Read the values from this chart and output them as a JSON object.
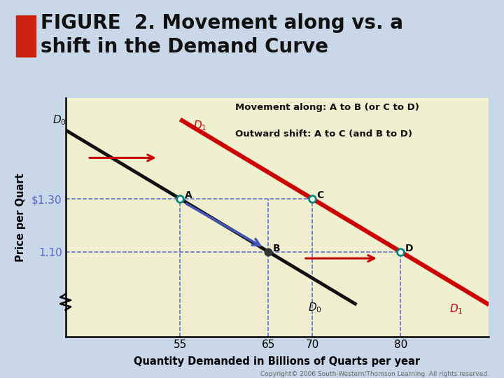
{
  "bg_outer": "#c8d8e8",
  "bg_title": "#f0f0d0",
  "bg_plot": "#f0f0d0",
  "legend_text1": "Movement along: A to B (or C to D)",
  "legend_text2": "Outward shift: A to C (and B to D)",
  "xlabel": "Quantity Demanded in Billions of Quarts per year",
  "ylabel": "Price per Quart",
  "copyright": "Copyright© 2006 South-Western/Thomson Learning. All rights reserved.",
  "D0_color": "#111111",
  "D1_color": "#cc0000",
  "xticks": [
    55,
    65,
    70,
    80
  ],
  "yticks": [
    1.1,
    1.3
  ],
  "ytick_labels": [
    "1.10",
    "$1.30"
  ],
  "price_A": 1.3,
  "qty_A": 55,
  "price_B": 1.1,
  "qty_B": 65,
  "price_C": 1.3,
  "qty_C": 70,
  "price_D": 1.1,
  "qty_D": 80,
  "teal": "#008878",
  "dashed_color": "#5566cc",
  "xmin": 42,
  "xmax": 90,
  "ymin": 0.78,
  "ymax": 1.68
}
